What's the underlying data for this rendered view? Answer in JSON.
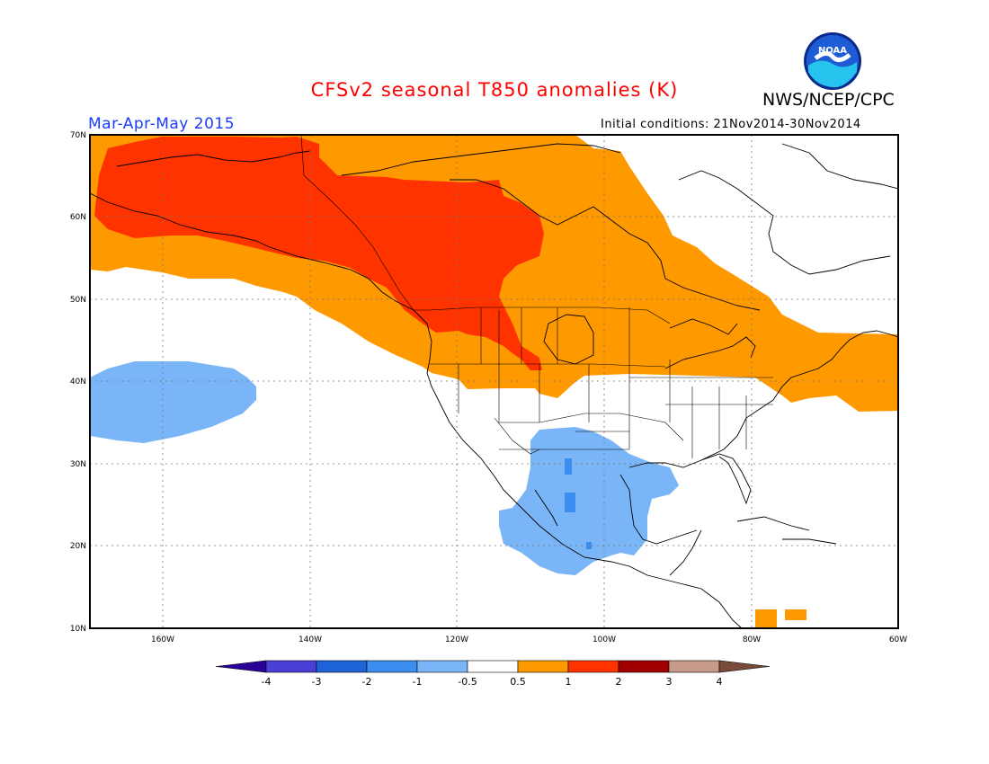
{
  "header": {
    "title": "CFSv2 seasonal T850 anomalies (K)",
    "title_color": "#ff0000",
    "agency": "NWS/NCEP/CPC",
    "season": "Mar-Apr-May 2015",
    "season_color": "#1a3cff",
    "initial_conditions": "Initial conditions: 21Nov2014-30Nov2014",
    "logo_text": "NOAA"
  },
  "map": {
    "lat_labels": [
      "70N",
      "60N",
      "50N",
      "40N",
      "30N",
      "20N",
      "10N"
    ],
    "lon_labels": [
      "160W",
      "140W",
      "120W",
      "100W",
      "80W",
      "60W"
    ],
    "grid_style": "dotted"
  },
  "colorbar": {
    "labels": [
      "-4",
      "-3",
      "-2",
      "-1",
      "-0.5",
      "0.5",
      "1",
      "2",
      "3",
      "4"
    ],
    "colors": [
      "#2b0099",
      "#4a3fd6",
      "#1f63d9",
      "#3b8ef0",
      "#7ab6f7",
      "#ffffff",
      "#ff9900",
      "#ff3300",
      "#a00000",
      "#c89a8a",
      "#7a4a3a"
    ]
  }
}
